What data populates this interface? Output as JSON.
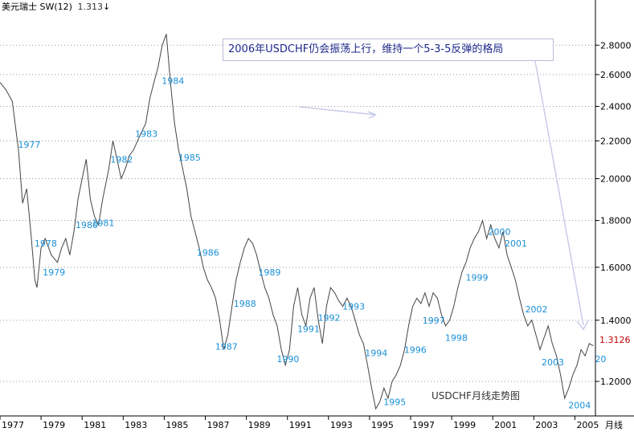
{
  "header": {
    "name": "美元瑞士",
    "indicator": "SW(12)",
    "last_value": "1.313",
    "arrow": "↓"
  },
  "annotation": "2006年USDCHF仍会振荡上行，维持一个5-3-5反弹的格局",
  "caption": "USDCHF月线走势图",
  "last_label": "1.3126",
  "colors": {
    "price_line": "#444444",
    "year_label": "#1a8fd6",
    "axis": "#000000",
    "grid": "#999999",
    "last_value": "#c00000",
    "annotation_text": "#1d2a8a",
    "arrow": "#c8cce8"
  },
  "chart_data": {
    "type": "line",
    "series_name": "USDCHF",
    "y_scale": "log",
    "ylim": [
      1.1,
      3.05
    ],
    "xlim": [
      1977.0,
      2006.0
    ],
    "x_axis_label": "月线",
    "x_ticks": [
      "1977",
      "1979",
      "1981",
      "1983",
      "1985",
      "1987",
      "1989",
      "1991",
      "1993",
      "1995",
      "1997",
      "1999",
      "2001",
      "2003",
      "2005"
    ],
    "y_ticks": [
      "1.2000",
      "1.4000",
      "1.6000",
      "1.8000",
      "2.0000",
      "2.2000",
      "2.4000",
      "2.6000",
      "2.8000"
    ],
    "grid": true,
    "points": [
      [
        1977.0,
        2.55
      ],
      [
        1977.3,
        2.5
      ],
      [
        1977.6,
        2.43
      ],
      [
        1977.9,
        2.15
      ],
      [
        1978.1,
        1.88
      ],
      [
        1978.3,
        1.95
      ],
      [
        1978.5,
        1.75
      ],
      [
        1978.7,
        1.55
      ],
      [
        1978.8,
        1.52
      ],
      [
        1979.0,
        1.68
      ],
      [
        1979.2,
        1.72
      ],
      [
        1979.5,
        1.65
      ],
      [
        1979.8,
        1.62
      ],
      [
        1980.0,
        1.68
      ],
      [
        1980.2,
        1.72
      ],
      [
        1980.4,
        1.65
      ],
      [
        1980.6,
        1.75
      ],
      [
        1980.8,
        1.9
      ],
      [
        1981.0,
        2.0
      ],
      [
        1981.2,
        2.1
      ],
      [
        1981.4,
        1.9
      ],
      [
        1981.6,
        1.82
      ],
      [
        1981.8,
        1.78
      ],
      [
        1982.0,
        1.9
      ],
      [
        1982.3,
        2.05
      ],
      [
        1982.5,
        2.2
      ],
      [
        1982.7,
        2.1
      ],
      [
        1982.9,
        2.0
      ],
      [
        1983.1,
        2.05
      ],
      [
        1983.3,
        2.12
      ],
      [
        1983.5,
        2.15
      ],
      [
        1983.7,
        2.2
      ],
      [
        1983.9,
        2.25
      ],
      [
        1984.1,
        2.3
      ],
      [
        1984.3,
        2.45
      ],
      [
        1984.5,
        2.55
      ],
      [
        1984.7,
        2.65
      ],
      [
        1984.9,
        2.8
      ],
      [
        1985.1,
        2.88
      ],
      [
        1985.3,
        2.55
      ],
      [
        1985.5,
        2.3
      ],
      [
        1985.7,
        2.15
      ],
      [
        1985.9,
        2.05
      ],
      [
        1986.1,
        1.95
      ],
      [
        1986.3,
        1.82
      ],
      [
        1986.5,
        1.75
      ],
      [
        1986.7,
        1.68
      ],
      [
        1986.9,
        1.6
      ],
      [
        1987.1,
        1.55
      ],
      [
        1987.3,
        1.52
      ],
      [
        1987.5,
        1.48
      ],
      [
        1987.7,
        1.4
      ],
      [
        1987.9,
        1.3
      ],
      [
        1988.1,
        1.35
      ],
      [
        1988.3,
        1.45
      ],
      [
        1988.5,
        1.55
      ],
      [
        1988.7,
        1.62
      ],
      [
        1988.9,
        1.68
      ],
      [
        1989.1,
        1.72
      ],
      [
        1989.3,
        1.7
      ],
      [
        1989.5,
        1.65
      ],
      [
        1989.7,
        1.58
      ],
      [
        1989.9,
        1.52
      ],
      [
        1990.1,
        1.48
      ],
      [
        1990.3,
        1.42
      ],
      [
        1990.5,
        1.38
      ],
      [
        1990.7,
        1.3
      ],
      [
        1990.9,
        1.25
      ],
      [
        1991.1,
        1.3
      ],
      [
        1991.3,
        1.45
      ],
      [
        1991.5,
        1.52
      ],
      [
        1991.7,
        1.42
      ],
      [
        1991.9,
        1.38
      ],
      [
        1992.1,
        1.48
      ],
      [
        1992.3,
        1.52
      ],
      [
        1992.5,
        1.4
      ],
      [
        1992.7,
        1.32
      ],
      [
        1992.9,
        1.45
      ],
      [
        1993.1,
        1.52
      ],
      [
        1993.3,
        1.5
      ],
      [
        1993.5,
        1.47
      ],
      [
        1993.7,
        1.45
      ],
      [
        1993.9,
        1.48
      ],
      [
        1994.1,
        1.45
      ],
      [
        1994.3,
        1.4
      ],
      [
        1994.5,
        1.35
      ],
      [
        1994.7,
        1.32
      ],
      [
        1994.9,
        1.25
      ],
      [
        1995.1,
        1.18
      ],
      [
        1995.3,
        1.12
      ],
      [
        1995.5,
        1.14
      ],
      [
        1995.7,
        1.18
      ],
      [
        1995.9,
        1.15
      ],
      [
        1996.1,
        1.2
      ],
      [
        1996.3,
        1.22
      ],
      [
        1996.5,
        1.25
      ],
      [
        1996.7,
        1.3
      ],
      [
        1996.9,
        1.38
      ],
      [
        1997.1,
        1.45
      ],
      [
        1997.3,
        1.48
      ],
      [
        1997.5,
        1.46
      ],
      [
        1997.7,
        1.5
      ],
      [
        1997.9,
        1.45
      ],
      [
        1998.1,
        1.5
      ],
      [
        1998.3,
        1.48
      ],
      [
        1998.5,
        1.42
      ],
      [
        1998.7,
        1.38
      ],
      [
        1998.9,
        1.4
      ],
      [
        1999.1,
        1.45
      ],
      [
        1999.3,
        1.52
      ],
      [
        1999.5,
        1.58
      ],
      [
        1999.7,
        1.62
      ],
      [
        1999.9,
        1.68
      ],
      [
        2000.1,
        1.72
      ],
      [
        2000.3,
        1.75
      ],
      [
        2000.5,
        1.8
      ],
      [
        2000.7,
        1.72
      ],
      [
        2000.9,
        1.78
      ],
      [
        2001.1,
        1.72
      ],
      [
        2001.3,
        1.68
      ],
      [
        2001.5,
        1.75
      ],
      [
        2001.7,
        1.65
      ],
      [
        2001.9,
        1.6
      ],
      [
        2002.1,
        1.55
      ],
      [
        2002.3,
        1.48
      ],
      [
        2002.5,
        1.42
      ],
      [
        2002.7,
        1.38
      ],
      [
        2002.9,
        1.4
      ],
      [
        2003.1,
        1.35
      ],
      [
        2003.3,
        1.3
      ],
      [
        2003.5,
        1.34
      ],
      [
        2003.7,
        1.38
      ],
      [
        2003.9,
        1.32
      ],
      [
        2004.1,
        1.28
      ],
      [
        2004.3,
        1.22
      ],
      [
        2004.5,
        1.15
      ],
      [
        2004.7,
        1.18
      ],
      [
        2004.9,
        1.22
      ],
      [
        2005.1,
        1.25
      ],
      [
        2005.3,
        1.3
      ],
      [
        2005.5,
        1.28
      ],
      [
        2005.7,
        1.32
      ],
      [
        2005.9,
        1.3126
      ]
    ],
    "year_labels": [
      {
        "text": "1977",
        "x": 1977.8,
        "y": 2.18
      },
      {
        "text": "1978",
        "x": 1978.6,
        "y": 1.7
      },
      {
        "text": "1979",
        "x": 1979.0,
        "y": 1.58
      },
      {
        "text": "1980",
        "x": 1980.6,
        "y": 1.78
      },
      {
        "text": "1981",
        "x": 1981.4,
        "y": 1.79
      },
      {
        "text": "1982",
        "x": 1982.3,
        "y": 2.1
      },
      {
        "text": "1983",
        "x": 1983.5,
        "y": 2.24
      },
      {
        "text": "1984",
        "x": 1984.8,
        "y": 2.56
      },
      {
        "text": "1985",
        "x": 1985.6,
        "y": 2.11
      },
      {
        "text": "1986",
        "x": 1986.5,
        "y": 1.66
      },
      {
        "text": "1987",
        "x": 1987.4,
        "y": 1.31
      },
      {
        "text": "1988",
        "x": 1988.3,
        "y": 1.46
      },
      {
        "text": "1989",
        "x": 1989.5,
        "y": 1.58
      },
      {
        "text": "1990",
        "x": 1990.4,
        "y": 1.27
      },
      {
        "text": "1991",
        "x": 1991.4,
        "y": 1.37
      },
      {
        "text": "1992",
        "x": 1992.4,
        "y": 1.41
      },
      {
        "text": "1993",
        "x": 1993.6,
        "y": 1.45
      },
      {
        "text": "1994",
        "x": 1994.7,
        "y": 1.29
      },
      {
        "text": "1995",
        "x": 1995.6,
        "y": 1.14
      },
      {
        "text": "1996",
        "x": 1996.6,
        "y": 1.3
      },
      {
        "text": "1997",
        "x": 1997.5,
        "y": 1.4
      },
      {
        "text": "1998",
        "x": 1998.6,
        "y": 1.34
      },
      {
        "text": "1999",
        "x": 1999.6,
        "y": 1.56
      },
      {
        "text": "2000",
        "x": 2000.7,
        "y": 1.75
      },
      {
        "text": "2001",
        "x": 2001.5,
        "y": 1.7
      },
      {
        "text": "2002",
        "x": 2002.5,
        "y": 1.44
      },
      {
        "text": "2003",
        "x": 2003.3,
        "y": 1.26
      },
      {
        "text": "2004",
        "x": 2004.6,
        "y": 1.13
      },
      {
        "text": "20",
        "x": 2005.9,
        "y": 1.27
      }
    ]
  }
}
